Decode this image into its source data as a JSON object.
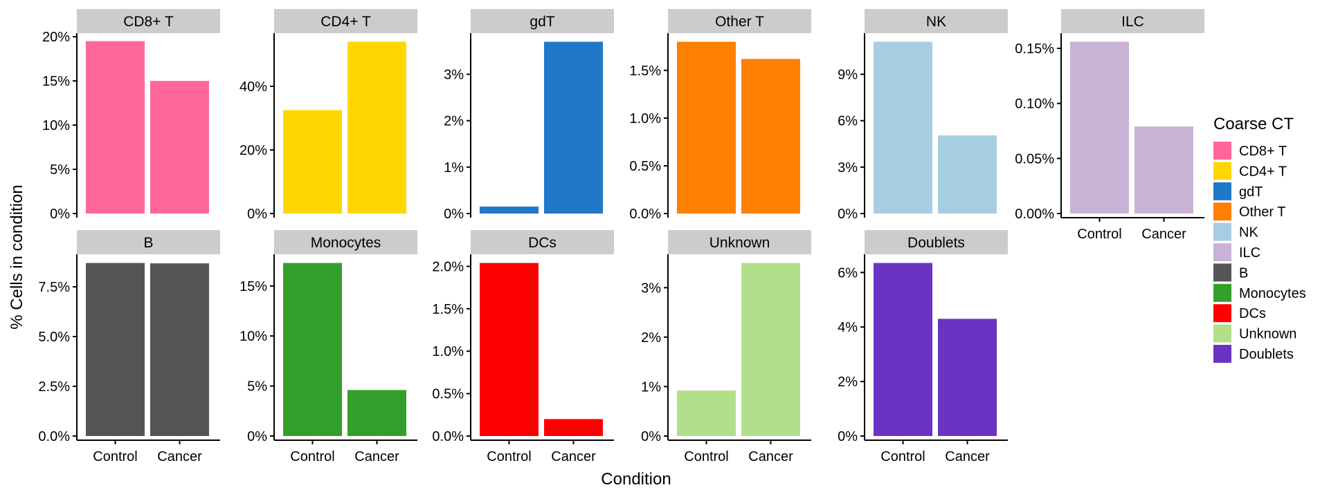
{
  "chart_data": {
    "type": "bar",
    "facet_layout": "wrap",
    "categories": [
      "Control",
      "Cancer"
    ],
    "xlabel": "Condition",
    "ylabel": "% Cells in condition",
    "legend": {
      "title": "Coarse CT",
      "position": "right",
      "items": [
        {
          "label": "CD8+ T",
          "color": "#FF6699"
        },
        {
          "label": "CD4+ T",
          "color": "#FFD700"
        },
        {
          "label": "gdT",
          "color": "#1F78C8"
        },
        {
          "label": "Other T",
          "color": "#FF7F00"
        },
        {
          "label": "NK",
          "color": "#A6CEE3"
        },
        {
          "label": "ILC",
          "color": "#CAB2D6"
        },
        {
          "label": "B",
          "color": "#555555"
        },
        {
          "label": "Monocytes",
          "color": "#33A02C"
        },
        {
          "label": "DCs",
          "color": "#FF0000"
        },
        {
          "label": "Unknown",
          "color": "#B2DF8A"
        },
        {
          "label": "Doublets",
          "color": "#6A33C2"
        }
      ]
    },
    "facets": [
      {
        "name": "CD8+ T",
        "color": "#FF6699",
        "values": [
          19.5,
          15.0
        ],
        "ylim": [
          0,
          20.4
        ],
        "ticks": [
          0,
          5,
          10,
          15,
          20
        ],
        "tick_labels": [
          "0%",
          "5%",
          "10%",
          "15%",
          "20%"
        ],
        "show_x": false
      },
      {
        "name": "CD4+ T",
        "color": "#FFD700",
        "values": [
          32.5,
          54.0
        ],
        "ylim": [
          0,
          56.7
        ],
        "ticks": [
          0,
          20,
          40
        ],
        "tick_labels": [
          "0%",
          "20%",
          "40%"
        ],
        "show_x": false
      },
      {
        "name": "gdT",
        "color": "#1F78C8",
        "values": [
          0.15,
          3.7
        ],
        "ylim": [
          0,
          3.885
        ],
        "ticks": [
          0,
          1,
          2,
          3
        ],
        "tick_labels": [
          "0%",
          "1%",
          "2%",
          "3%"
        ],
        "show_x": false
      },
      {
        "name": "Other T",
        "color": "#FF7F00",
        "values": [
          1.8,
          1.62
        ],
        "ylim": [
          0,
          1.89
        ],
        "ticks": [
          0,
          0.5,
          1.0,
          1.5
        ],
        "tick_labels": [
          "0.0%",
          "0.5%",
          "1.0%",
          "1.5%"
        ],
        "show_x": false
      },
      {
        "name": "NK",
        "color": "#A6CEE3",
        "values": [
          11.1,
          5.05
        ],
        "ylim": [
          0,
          11.655
        ],
        "ticks": [
          0,
          3,
          6,
          9
        ],
        "tick_labels": [
          "0%",
          "3%",
          "6%",
          "9%"
        ],
        "show_x": false
      },
      {
        "name": "ILC",
        "color": "#CAB2D6",
        "values": [
          0.156,
          0.079
        ],
        "ylim": [
          0,
          0.1638
        ],
        "ticks": [
          0,
          0.05,
          0.1,
          0.15
        ],
        "tick_labels": [
          "0.00%",
          "0.05%",
          "0.10%",
          "0.15%"
        ],
        "show_x": true
      },
      {
        "name": "B",
        "color": "#555555",
        "values": [
          8.7,
          8.68
        ],
        "ylim": [
          0,
          9.135
        ],
        "ticks": [
          0,
          2.5,
          5.0,
          7.5
        ],
        "tick_labels": [
          "0.0%",
          "2.5%",
          "5.0%",
          "7.5%"
        ],
        "show_x": true
      },
      {
        "name": "Monocytes",
        "color": "#33A02C",
        "values": [
          17.3,
          4.6
        ],
        "ylim": [
          0,
          18.165
        ],
        "ticks": [
          0,
          5,
          10,
          15
        ],
        "tick_labels": [
          "0%",
          "5%",
          "10%",
          "15%"
        ],
        "show_x": true
      },
      {
        "name": "DCs",
        "color": "#FF0000",
        "values": [
          2.04,
          0.2
        ],
        "ylim": [
          0,
          2.142
        ],
        "ticks": [
          0,
          0.5,
          1.0,
          1.5,
          2.0
        ],
        "tick_labels": [
          "0.0%",
          "0.5%",
          "1.0%",
          "1.5%",
          "2.0%"
        ],
        "show_x": true
      },
      {
        "name": "Unknown",
        "color": "#B2DF8A",
        "values": [
          0.92,
          3.5
        ],
        "ylim": [
          0,
          3.675
        ],
        "ticks": [
          0,
          1,
          2,
          3
        ],
        "tick_labels": [
          "0%",
          "1%",
          "2%",
          "3%"
        ],
        "show_x": true
      },
      {
        "name": "Doublets",
        "color": "#6A33C2",
        "values": [
          6.35,
          4.3
        ],
        "ylim": [
          0,
          6.6675
        ],
        "ticks": [
          0,
          2,
          4,
          6
        ],
        "tick_labels": [
          "0%",
          "2%",
          "4%",
          "6%"
        ],
        "show_x": true
      }
    ]
  }
}
